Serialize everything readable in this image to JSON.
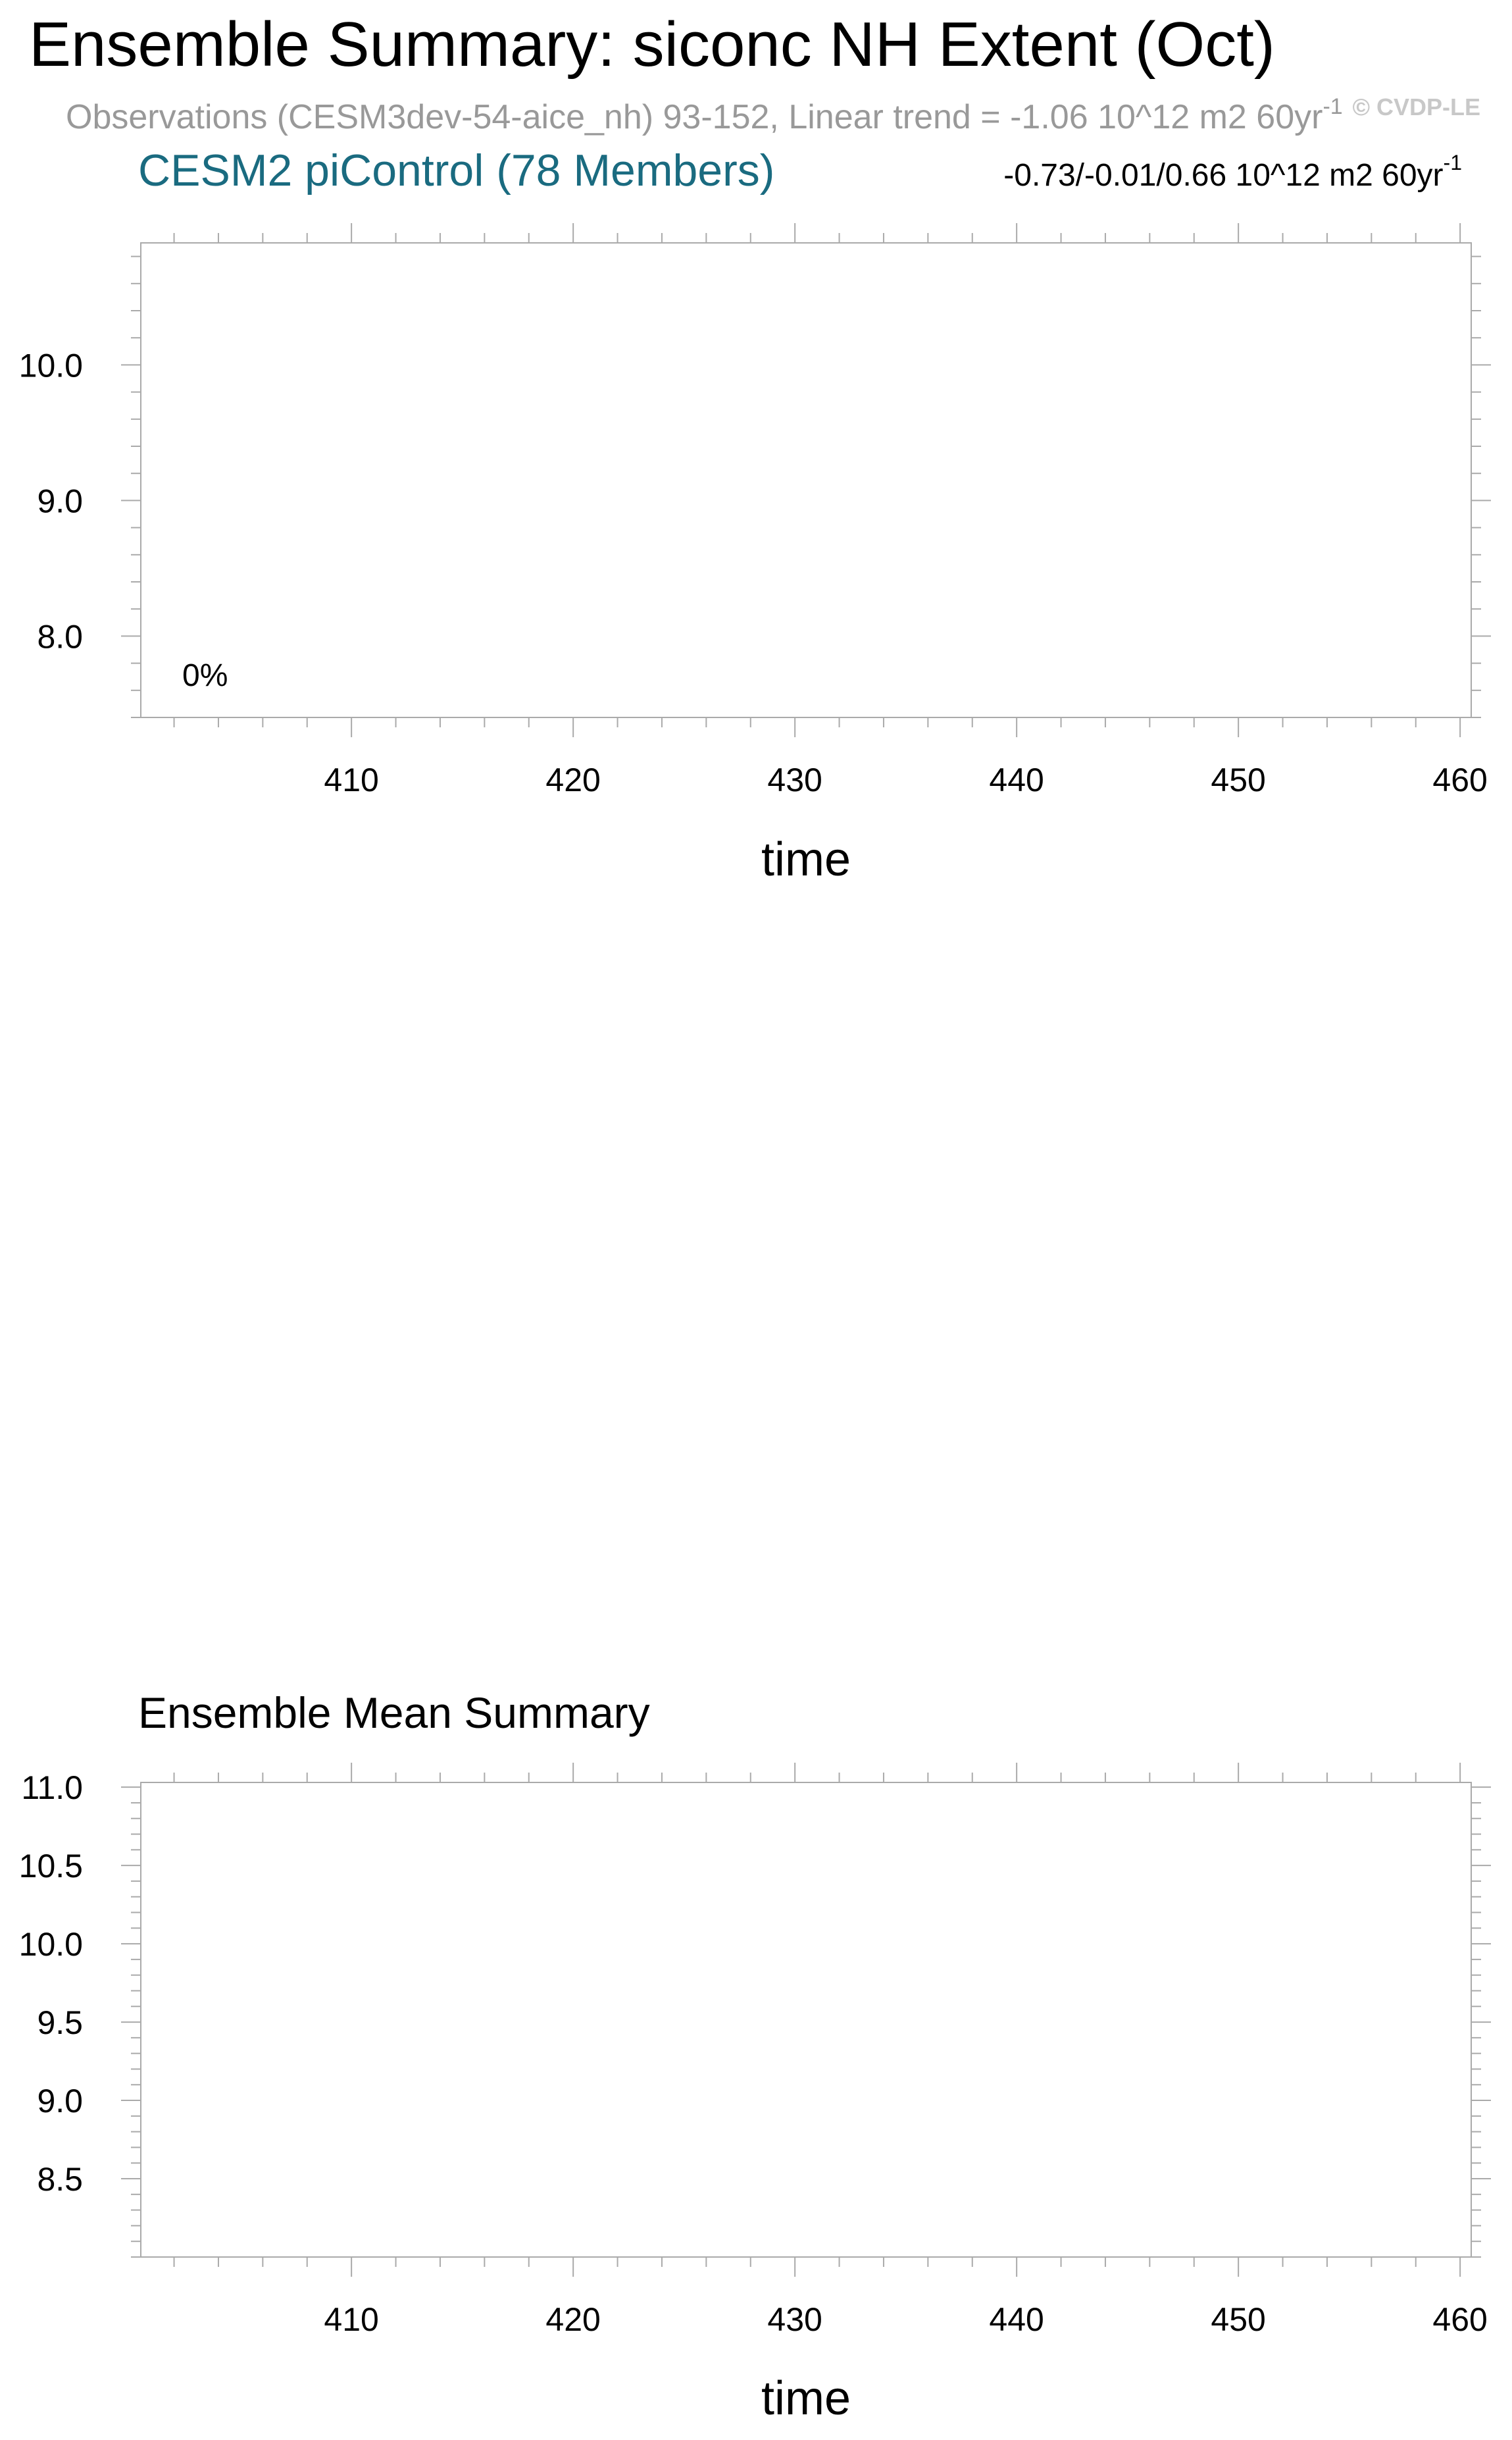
{
  "header": {
    "title": "Ensemble Summary: siconc NH Extent (Oct)",
    "subtitle_main": "Observations (CESM3dev-54-aice_nh) 93-152, Linear trend = -1.06 10^12 m2 60yr",
    "subtitle_sup": "-1",
    "watermark": "© CVDP-LE",
    "colors": {
      "title": "#000000",
      "subtitle": "#999999",
      "model": "#1a6b80",
      "watermark": "#c8c8c8",
      "frame": "#aaaaaa"
    }
  },
  "chart_data": [
    {
      "type": "line",
      "title": "CESM2 piControl (78 Members)",
      "trend_range_main": "-0.73/-0.01/0.66 10^12 m2 60yr",
      "trend_range_sup": "-1",
      "annotation": "0%",
      "xlabel": "time",
      "ylabel": "",
      "xlim": [
        400.5,
        460.5
      ],
      "ylim": [
        7.4,
        10.9
      ],
      "xticks": [
        410,
        420,
        430,
        440,
        450,
        460
      ],
      "xtick_labels": [
        "410",
        "420",
        "430",
        "440",
        "450",
        "460"
      ],
      "yticks": [
        8,
        9,
        10
      ],
      "ytick_labels": [
        "8.0",
        "9.0",
        "10.0"
      ],
      "x_minor_step": 2,
      "y_minor_step": 0.2,
      "series": []
    },
    {
      "type": "line",
      "title": "Ensemble Mean Summary",
      "xlabel": "time",
      "ylabel": "",
      "xlim": [
        400.5,
        460.5
      ],
      "ylim": [
        8.0,
        11.03
      ],
      "xticks": [
        410,
        420,
        430,
        440,
        450,
        460
      ],
      "xtick_labels": [
        "410",
        "420",
        "430",
        "440",
        "450",
        "460"
      ],
      "yticks": [
        8.5,
        9.0,
        9.5,
        10.0,
        10.5,
        11.0
      ],
      "ytick_labels": [
        "8.5",
        "9.0",
        "9.5",
        "10.0",
        "10.5",
        "11.0"
      ],
      "x_minor_step": 2,
      "y_minor_step": 0.1,
      "series": []
    }
  ]
}
